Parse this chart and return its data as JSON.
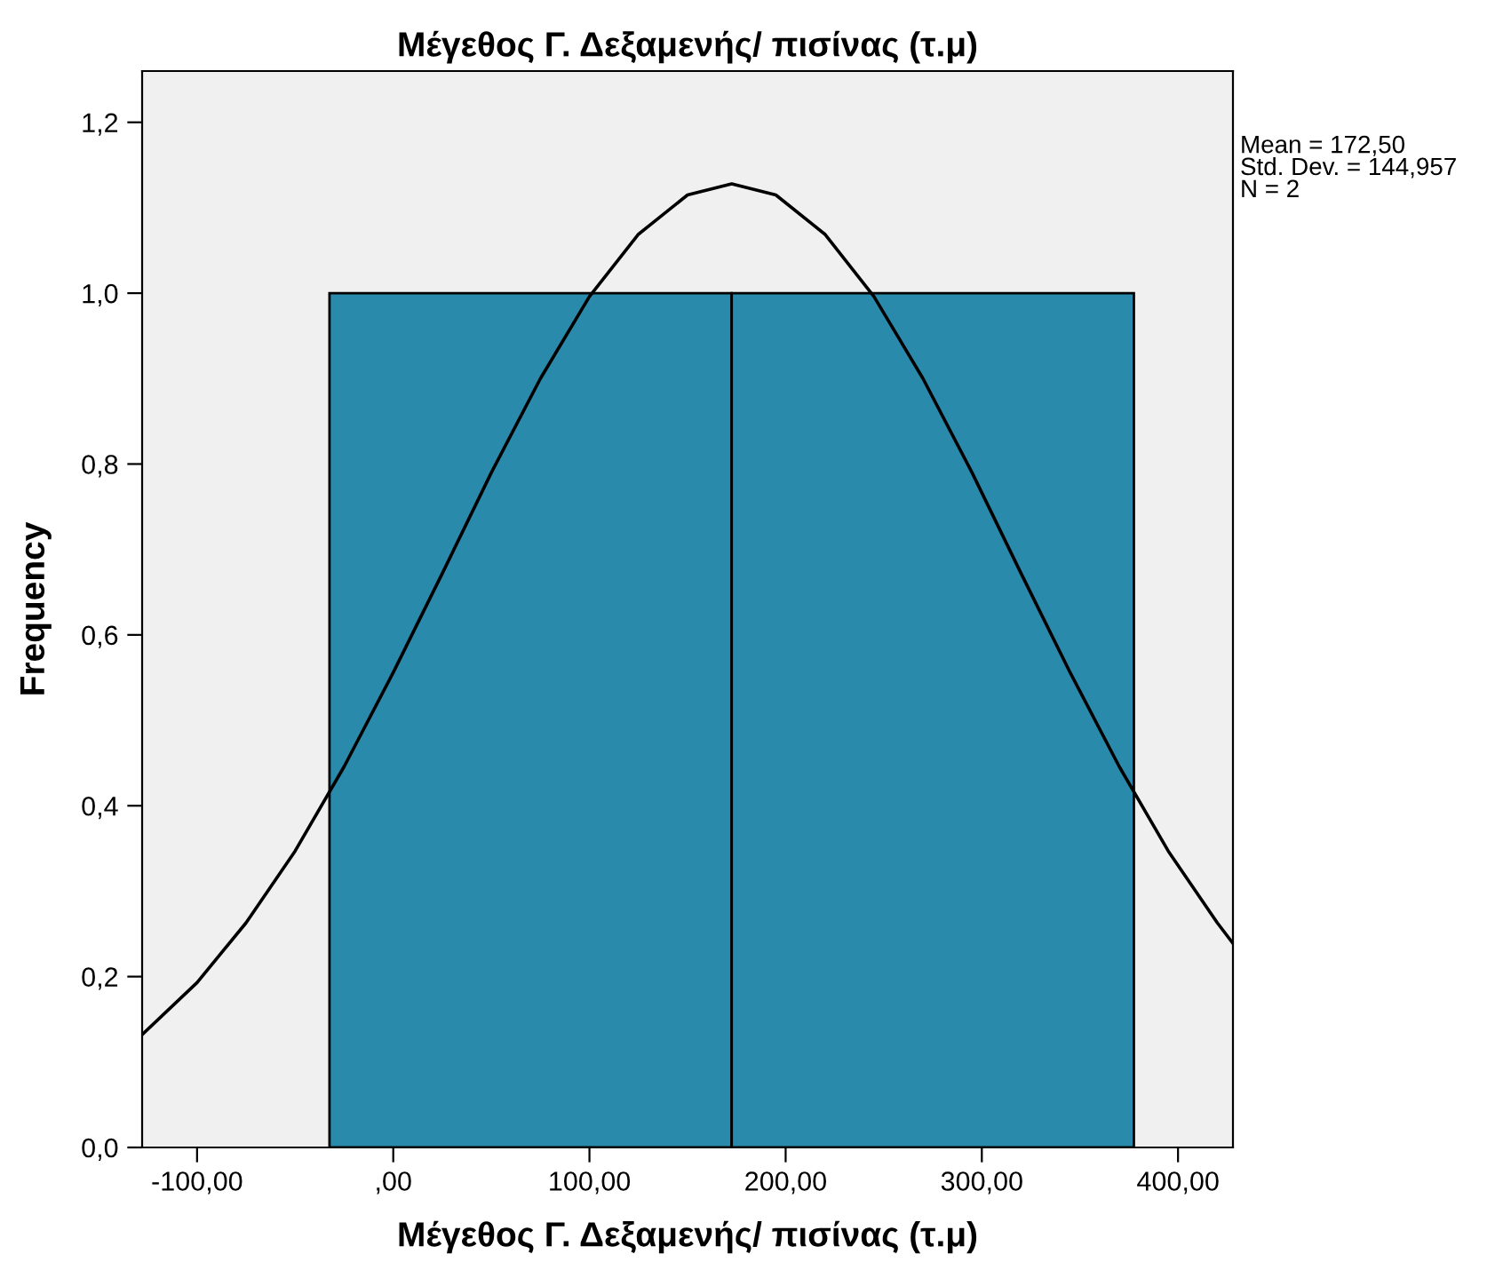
{
  "chart_data": {
    "type": "histogram",
    "title": "Μέγεθος Γ. Δεξαμενής/ πισίνας (τ.μ)",
    "xlabel": "Μέγεθος Γ. Δεξαμενής/ πισίνας (τ.μ)",
    "ylabel": "Frequency",
    "annotations": [
      "Mean = 172,50\nStd. Dev. = 144,957\nN = 2"
    ],
    "series": [
      {
        "type": "histogram",
        "bins": [
          -32.5,
          172.5,
          377.5
        ],
        "values": [
          1,
          1
        ],
        "color": "#2a8aac"
      },
      {
        "type": "line",
        "color": "#000000",
        "x": [
          -128,
          -100,
          -75,
          -50,
          -25,
          0,
          25,
          50,
          75,
          100,
          125,
          150,
          172.5,
          195,
          220,
          245,
          270,
          295,
          320,
          345,
          370,
          395,
          420,
          428
        ],
        "values": [
          0.132,
          0.193,
          0.263,
          0.347,
          0.446,
          0.556,
          0.672,
          0.79,
          0.9,
          0.996,
          1.069,
          1.115,
          1.128,
          1.115,
          1.069,
          0.996,
          0.9,
          0.79,
          0.672,
          0.556,
          0.446,
          0.347,
          0.263,
          0.239
        ]
      }
    ],
    "xlim": [
      -128,
      428
    ],
    "ylim": [
      0,
      1.26
    ],
    "xticks": [
      {
        "value": -100,
        "label": "-100,00"
      },
      {
        "value": 0,
        "label": ",00"
      },
      {
        "value": 100,
        "label": "100,00"
      },
      {
        "value": 200,
        "label": "200,00"
      },
      {
        "value": 300,
        "label": "300,00"
      },
      {
        "value": 400,
        "label": "400,00"
      }
    ],
    "yticks": [
      {
        "value": 0,
        "label": "0,0"
      },
      {
        "value": 0.2,
        "label": "0,2"
      },
      {
        "value": 0.4,
        "label": "0,4"
      },
      {
        "value": 0.6,
        "label": "0,6"
      },
      {
        "value": 0.8,
        "label": "0,8"
      },
      {
        "value": 1.0,
        "label": "1,0"
      },
      {
        "value": 1.2,
        "label": "1,2"
      }
    ],
    "grid": false,
    "legend": false
  }
}
